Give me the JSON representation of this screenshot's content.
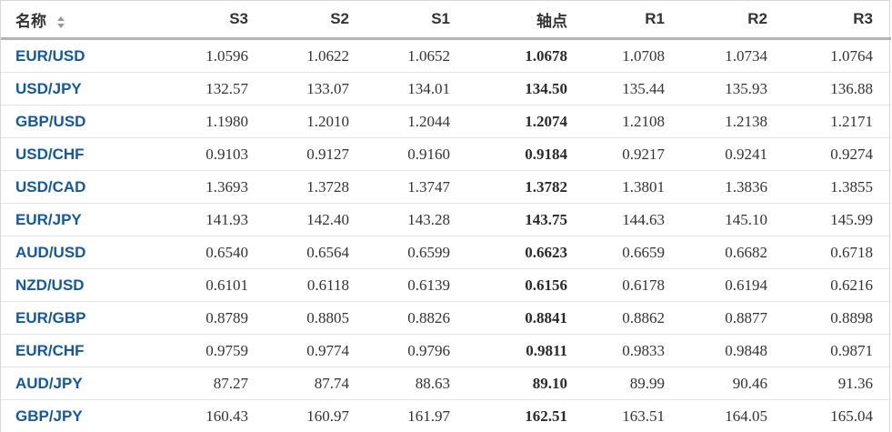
{
  "colors": {
    "pair_link_blue": "#15599d",
    "header_text": "#333333",
    "value_text": "#333333",
    "header_underline": "#b3b3b3",
    "row_border": "#e4e4e4",
    "sort_arrow_gray": "#9a9a9a"
  },
  "table": {
    "columns": [
      {
        "key": "name",
        "label": "名称",
        "sortable": true
      },
      {
        "key": "s3",
        "label": "S3"
      },
      {
        "key": "s2",
        "label": "S2"
      },
      {
        "key": "s1",
        "label": "S1"
      },
      {
        "key": "pivot",
        "label": "轴点"
      },
      {
        "key": "r1",
        "label": "R1"
      },
      {
        "key": "r2",
        "label": "R2"
      },
      {
        "key": "r3",
        "label": "R3"
      }
    ],
    "rows": [
      {
        "name": "EUR/USD",
        "s3": "1.0596",
        "s2": "1.0622",
        "s1": "1.0652",
        "pivot": "1.0678",
        "r1": "1.0708",
        "r2": "1.0734",
        "r3": "1.0764"
      },
      {
        "name": "USD/JPY",
        "s3": "132.57",
        "s2": "133.07",
        "s1": "134.01",
        "pivot": "134.50",
        "r1": "135.44",
        "r2": "135.93",
        "r3": "136.88"
      },
      {
        "name": "GBP/USD",
        "s3": "1.1980",
        "s2": "1.2010",
        "s1": "1.2044",
        "pivot": "1.2074",
        "r1": "1.2108",
        "r2": "1.2138",
        "r3": "1.2171"
      },
      {
        "name": "USD/CHF",
        "s3": "0.9103",
        "s2": "0.9127",
        "s1": "0.9160",
        "pivot": "0.9184",
        "r1": "0.9217",
        "r2": "0.9241",
        "r3": "0.9274"
      },
      {
        "name": "USD/CAD",
        "s3": "1.3693",
        "s2": "1.3728",
        "s1": "1.3747",
        "pivot": "1.3782",
        "r1": "1.3801",
        "r2": "1.3836",
        "r3": "1.3855"
      },
      {
        "name": "EUR/JPY",
        "s3": "141.93",
        "s2": "142.40",
        "s1": "143.28",
        "pivot": "143.75",
        "r1": "144.63",
        "r2": "145.10",
        "r3": "145.99"
      },
      {
        "name": "AUD/USD",
        "s3": "0.6540",
        "s2": "0.6564",
        "s1": "0.6599",
        "pivot": "0.6623",
        "r1": "0.6659",
        "r2": "0.6682",
        "r3": "0.6718"
      },
      {
        "name": "NZD/USD",
        "s3": "0.6101",
        "s2": "0.6118",
        "s1": "0.6139",
        "pivot": "0.6156",
        "r1": "0.6178",
        "r2": "0.6194",
        "r3": "0.6216"
      },
      {
        "name": "EUR/GBP",
        "s3": "0.8789",
        "s2": "0.8805",
        "s1": "0.8826",
        "pivot": "0.8841",
        "r1": "0.8862",
        "r2": "0.8877",
        "r3": "0.8898"
      },
      {
        "name": "EUR/CHF",
        "s3": "0.9759",
        "s2": "0.9774",
        "s1": "0.9796",
        "pivot": "0.9811",
        "r1": "0.9833",
        "r2": "0.9848",
        "r3": "0.9871"
      },
      {
        "name": "AUD/JPY",
        "s3": "87.27",
        "s2": "87.74",
        "s1": "88.63",
        "pivot": "89.10",
        "r1": "89.99",
        "r2": "90.46",
        "r3": "91.36"
      },
      {
        "name": "GBP/JPY",
        "s3": "160.43",
        "s2": "160.97",
        "s1": "161.97",
        "pivot": "162.51",
        "r1": "163.51",
        "r2": "164.05",
        "r3": "165.04"
      }
    ]
  }
}
